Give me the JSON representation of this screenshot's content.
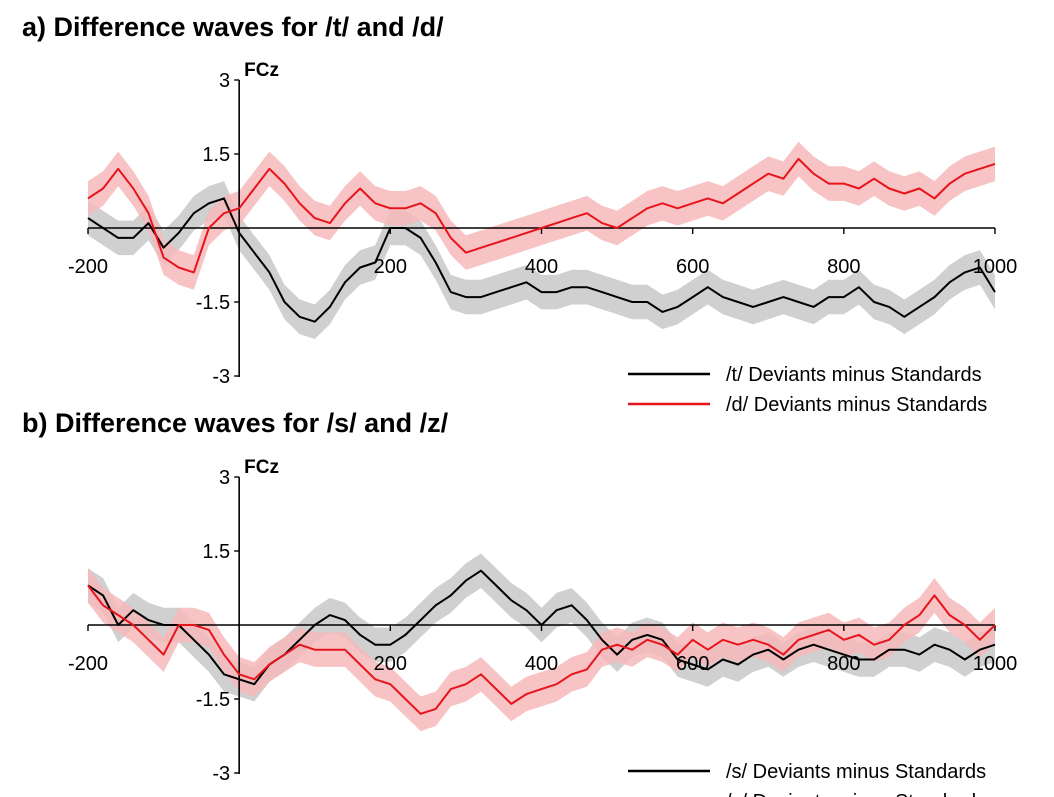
{
  "chart_data": [
    {
      "type": "line",
      "title": "a) Difference waves for /t/ and /d/",
      "electrode": "FCz",
      "xlim": [
        -200,
        1000
      ],
      "ylim": [
        -3,
        3
      ],
      "x_ticks": [
        "-200",
        "200",
        "400",
        "600",
        "800",
        "1000"
      ],
      "y_ticks": [
        "3",
        "1.5",
        "-1.5",
        "-3"
      ],
      "x": [
        -200,
        -180,
        -160,
        -140,
        -120,
        -100,
        -80,
        -60,
        -40,
        -20,
        0,
        20,
        40,
        60,
        80,
        100,
        120,
        140,
        160,
        180,
        200,
        220,
        240,
        260,
        280,
        300,
        320,
        340,
        360,
        380,
        400,
        420,
        440,
        460,
        480,
        500,
        520,
        540,
        560,
        580,
        600,
        620,
        640,
        660,
        680,
        700,
        720,
        740,
        760,
        780,
        800,
        820,
        840,
        860,
        880,
        900,
        920,
        940,
        960,
        980,
        1000
      ],
      "series": [
        {
          "name": "/t/ Deviants minus Standards",
          "color": "#000000",
          "band_color": "#c8c8c8",
          "values": [
            0.2,
            0.0,
            -0.2,
            -0.2,
            0.1,
            -0.4,
            -0.1,
            0.3,
            0.5,
            0.6,
            -0.1,
            -0.5,
            -0.9,
            -1.5,
            -1.8,
            -1.9,
            -1.6,
            -1.1,
            -0.8,
            -0.7,
            0.0,
            0.0,
            -0.2,
            -0.7,
            -1.3,
            -1.4,
            -1.4,
            -1.3,
            -1.2,
            -1.1,
            -1.3,
            -1.3,
            -1.2,
            -1.2,
            -1.3,
            -1.4,
            -1.5,
            -1.5,
            -1.7,
            -1.6,
            -1.4,
            -1.2,
            -1.4,
            -1.5,
            -1.6,
            -1.5,
            -1.4,
            -1.5,
            -1.6,
            -1.4,
            -1.4,
            -1.2,
            -1.5,
            -1.6,
            -1.8,
            -1.6,
            -1.4,
            -1.1,
            -0.9,
            -0.8,
            -1.3
          ]
        },
        {
          "name": "/d/ Deviants minus Standards",
          "color": "#e8141b",
          "band_color": "#f6b8ba",
          "values": [
            0.6,
            0.8,
            1.2,
            0.8,
            0.3,
            -0.6,
            -0.8,
            -0.9,
            0.0,
            0.3,
            0.4,
            0.8,
            1.2,
            0.9,
            0.5,
            0.2,
            0.1,
            0.5,
            0.8,
            0.5,
            0.4,
            0.4,
            0.5,
            0.3,
            -0.2,
            -0.5,
            -0.4,
            -0.3,
            -0.2,
            -0.1,
            0.0,
            0.1,
            0.2,
            0.3,
            0.1,
            0.0,
            0.2,
            0.4,
            0.5,
            0.4,
            0.5,
            0.6,
            0.5,
            0.7,
            0.9,
            1.1,
            1.0,
            1.4,
            1.1,
            0.9,
            0.9,
            0.8,
            1.0,
            0.8,
            0.7,
            0.8,
            0.6,
            0.9,
            1.1,
            1.2,
            1.3
          ]
        }
      ]
    },
    {
      "type": "line",
      "title": "b) Difference waves for /s/ and /z/",
      "electrode": "FCz",
      "xlim": [
        -200,
        1000
      ],
      "ylim": [
        -3,
        3
      ],
      "x_ticks": [
        "-200",
        "200",
        "400",
        "600",
        "800",
        "1000"
      ],
      "y_ticks": [
        "3",
        "1.5",
        "-1.5",
        "-3"
      ],
      "x": [
        -200,
        -180,
        -160,
        -140,
        -120,
        -100,
        -80,
        -60,
        -40,
        -20,
        0,
        20,
        40,
        60,
        80,
        100,
        120,
        140,
        160,
        180,
        200,
        220,
        240,
        260,
        280,
        300,
        320,
        340,
        360,
        380,
        400,
        420,
        440,
        460,
        480,
        500,
        520,
        540,
        560,
        580,
        600,
        620,
        640,
        660,
        680,
        700,
        720,
        740,
        760,
        780,
        800,
        820,
        840,
        860,
        880,
        900,
        920,
        940,
        960,
        980,
        1000
      ],
      "series": [
        {
          "name": "/s/ Deviants minus Standards",
          "color": "#000000",
          "band_color": "#c8c8c8",
          "values": [
            0.8,
            0.6,
            0.0,
            0.3,
            0.1,
            0.0,
            0.0,
            -0.3,
            -0.6,
            -1.0,
            -1.1,
            -1.2,
            -0.8,
            -0.6,
            -0.3,
            0.0,
            0.2,
            0.1,
            -0.2,
            -0.4,
            -0.4,
            -0.2,
            0.1,
            0.4,
            0.6,
            0.9,
            1.1,
            0.8,
            0.5,
            0.3,
            0.0,
            0.3,
            0.4,
            0.1,
            -0.3,
            -0.6,
            -0.3,
            -0.2,
            -0.3,
            -0.7,
            -0.8,
            -0.9,
            -0.7,
            -0.8,
            -0.6,
            -0.5,
            -0.7,
            -0.5,
            -0.4,
            -0.5,
            -0.6,
            -0.7,
            -0.7,
            -0.5,
            -0.5,
            -0.6,
            -0.4,
            -0.5,
            -0.7,
            -0.5,
            -0.4
          ]
        },
        {
          "name": "/z/ Deviants minus Standards",
          "color": "#e8141b",
          "band_color": "#f6b8ba",
          "values": [
            0.8,
            0.4,
            0.2,
            0.0,
            -0.3,
            -0.6,
            0.0,
            0.0,
            -0.1,
            -0.6,
            -1.0,
            -1.1,
            -0.8,
            -0.6,
            -0.4,
            -0.5,
            -0.5,
            -0.5,
            -0.8,
            -1.1,
            -1.2,
            -1.5,
            -1.8,
            -1.7,
            -1.3,
            -1.2,
            -1.0,
            -1.3,
            -1.6,
            -1.4,
            -1.3,
            -1.2,
            -1.0,
            -0.9,
            -0.5,
            -0.4,
            -0.5,
            -0.3,
            -0.4,
            -0.6,
            -0.3,
            -0.5,
            -0.3,
            -0.4,
            -0.3,
            -0.4,
            -0.6,
            -0.3,
            -0.2,
            -0.1,
            -0.3,
            -0.2,
            -0.4,
            -0.3,
            0.0,
            0.2,
            0.6,
            0.2,
            0.0,
            -0.3,
            0.0
          ]
        }
      ]
    }
  ]
}
